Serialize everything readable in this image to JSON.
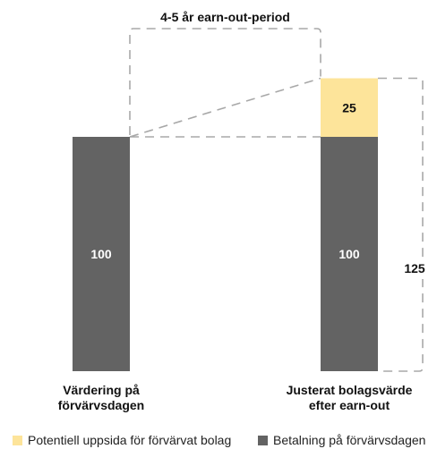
{
  "chart_data": {
    "type": "bar",
    "stacked": true,
    "categories": [
      "Värdering på\nförvärvsdagen",
      "Justerat bolagsvärde\nefter earn-out"
    ],
    "series": [
      {
        "name": "Betalning på förvärvsdagen",
        "values": [
          100,
          100
        ],
        "color": "#636363"
      },
      {
        "name": "Potentiell uppsida för förvärvat bolag",
        "values": [
          0,
          25
        ],
        "color": "#fde49a"
      }
    ],
    "totals": [
      100,
      125
    ],
    "total_label": "125",
    "period_label": "4-5 år earn-out-period",
    "grid": false,
    "legend_position": "bottom",
    "legend": [
      {
        "label": "Potentiell uppsida för förvärvat bolag",
        "color": "#fde49a"
      },
      {
        "label": "Betalning på förvärvsdagen",
        "color": "#636363"
      }
    ]
  }
}
